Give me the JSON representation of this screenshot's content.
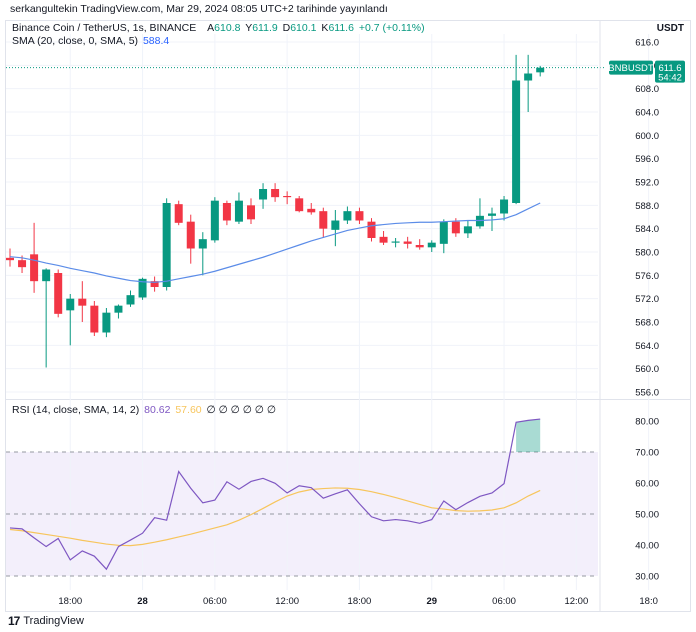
{
  "header": {
    "text": "serkangultekin TradingView.com, Mar 29, 2024 08:05 UTC+2 tarihinde yayınlandı"
  },
  "currency": "USDT",
  "legend": {
    "symbol": "Binance Coin / TetherUS, 1s, BINANCE",
    "open_label": "A",
    "open": "610.8",
    "high_label": "Y",
    "high": "611.9",
    "low_label": "D",
    "low": "610.1",
    "close_label": "K",
    "close": "611.6",
    "change": "+0.7 (+0.11%)",
    "sma_label": "SMA (20, close, 0, SMA, 5)",
    "sma_value": "588.4",
    "rsi_label": "RSI (14, close, SMA, 14, 2)",
    "rsi_value": "80.62",
    "rsi_sma_value": "57.60",
    "rsi_placeholders": "∅ ∅ ∅ ∅ ∅ ∅"
  },
  "price_badge": {
    "symbol": "BNBUSDT",
    "price": "611.6",
    "countdown": "54:42"
  },
  "colors": {
    "up": "#089981",
    "down": "#f23645",
    "sma": "#5b8ce8",
    "rsi": "#7e57c2",
    "rsi_sma": "#f7c55c",
    "rsi_band": "#f3effb",
    "grid": "#f0f3fa"
  },
  "footer": {
    "brand": "TradingView"
  },
  "chart_data": [
    {
      "type": "candlestick",
      "title": "Binance Coin / TetherUS, 1s, BINANCE",
      "y_ticks": [
        556,
        560,
        564,
        568,
        572,
        576,
        580,
        584,
        588,
        592,
        596,
        600,
        604,
        608,
        612,
        616
      ],
      "ylim": [
        555,
        617
      ],
      "x_ticks": [
        {
          "label": "18:00",
          "bold": false,
          "index": 5
        },
        {
          "label": "28",
          "bold": true,
          "index": 11
        },
        {
          "label": "06:00",
          "bold": false,
          "index": 17
        },
        {
          "label": "12:00",
          "bold": false,
          "index": 23
        },
        {
          "label": "18:00",
          "bold": false,
          "index": 29
        },
        {
          "label": "29",
          "bold": true,
          "index": 35
        },
        {
          "label": "06:00",
          "bold": false,
          "index": 41
        },
        {
          "label": "12:00",
          "bold": false,
          "index": 47
        },
        {
          "label": "18:0",
          "bold": false,
          "index": 53
        }
      ],
      "candles": [
        {
          "o": 579.0,
          "h": 580.6,
          "l": 577.5,
          "c": 578.6
        },
        {
          "o": 578.6,
          "h": 579.4,
          "l": 576.4,
          "c": 577.4
        },
        {
          "o": 579.6,
          "h": 585.0,
          "l": 573.0,
          "c": 575.0
        },
        {
          "o": 575.0,
          "h": 577.2,
          "l": 560.2,
          "c": 577.0
        },
        {
          "o": 576.4,
          "h": 577.0,
          "l": 568.8,
          "c": 569.4
        },
        {
          "o": 570.0,
          "h": 572.8,
          "l": 564.0,
          "c": 572.0
        },
        {
          "o": 572.0,
          "h": 575.0,
          "l": 568.0,
          "c": 570.8
        },
        {
          "o": 570.8,
          "h": 571.6,
          "l": 565.6,
          "c": 566.2
        },
        {
          "o": 566.2,
          "h": 570.4,
          "l": 565.4,
          "c": 569.6
        },
        {
          "o": 569.6,
          "h": 571.0,
          "l": 568.6,
          "c": 570.8
        },
        {
          "o": 571.0,
          "h": 573.4,
          "l": 570.6,
          "c": 572.6
        },
        {
          "o": 572.2,
          "h": 575.6,
          "l": 571.8,
          "c": 575.4
        },
        {
          "o": 575.0,
          "h": 575.8,
          "l": 573.2,
          "c": 574.0
        },
        {
          "o": 574.0,
          "h": 589.2,
          "l": 573.4,
          "c": 588.4
        },
        {
          "o": 588.2,
          "h": 588.8,
          "l": 584.6,
          "c": 585.0
        },
        {
          "o": 585.2,
          "h": 586.4,
          "l": 578.0,
          "c": 580.6
        },
        {
          "o": 580.6,
          "h": 583.4,
          "l": 576.0,
          "c": 582.2
        },
        {
          "o": 582.0,
          "h": 589.4,
          "l": 581.6,
          "c": 588.8
        },
        {
          "o": 588.4,
          "h": 588.8,
          "l": 584.6,
          "c": 585.4
        },
        {
          "o": 585.2,
          "h": 590.2,
          "l": 584.8,
          "c": 588.8
        },
        {
          "o": 588.0,
          "h": 589.2,
          "l": 584.8,
          "c": 585.6
        },
        {
          "o": 589.0,
          "h": 591.8,
          "l": 587.4,
          "c": 590.8
        },
        {
          "o": 590.8,
          "h": 591.8,
          "l": 588.6,
          "c": 589.4
        },
        {
          "o": 589.6,
          "h": 590.4,
          "l": 588.2,
          "c": 589.4
        },
        {
          "o": 589.2,
          "h": 589.6,
          "l": 586.8,
          "c": 587.0
        },
        {
          "o": 587.4,
          "h": 588.4,
          "l": 586.4,
          "c": 586.8
        },
        {
          "o": 587.0,
          "h": 587.6,
          "l": 582.4,
          "c": 584.0
        },
        {
          "o": 583.8,
          "h": 587.2,
          "l": 581.0,
          "c": 585.4
        },
        {
          "o": 585.4,
          "h": 587.8,
          "l": 584.8,
          "c": 587.0
        },
        {
          "o": 587.0,
          "h": 587.6,
          "l": 584.8,
          "c": 585.4
        },
        {
          "o": 585.2,
          "h": 585.8,
          "l": 581.8,
          "c": 582.4
        },
        {
          "o": 582.6,
          "h": 583.6,
          "l": 581.2,
          "c": 581.6
        },
        {
          "o": 581.6,
          "h": 582.4,
          "l": 580.8,
          "c": 581.8
        },
        {
          "o": 581.8,
          "h": 582.6,
          "l": 580.6,
          "c": 581.4
        },
        {
          "o": 581.2,
          "h": 582.2,
          "l": 580.4,
          "c": 580.8
        },
        {
          "o": 580.8,
          "h": 582.0,
          "l": 580.0,
          "c": 581.6
        },
        {
          "o": 581.4,
          "h": 585.6,
          "l": 579.8,
          "c": 585.2
        },
        {
          "o": 585.2,
          "h": 585.8,
          "l": 582.6,
          "c": 583.2
        },
        {
          "o": 583.2,
          "h": 585.4,
          "l": 582.4,
          "c": 584.4
        },
        {
          "o": 584.4,
          "h": 589.2,
          "l": 584.0,
          "c": 586.2
        },
        {
          "o": 586.2,
          "h": 587.6,
          "l": 583.6,
          "c": 586.6
        },
        {
          "o": 586.6,
          "h": 589.6,
          "l": 585.4,
          "c": 589.0
        },
        {
          "o": 588.4,
          "h": 613.8,
          "l": 588.2,
          "c": 609.4
        },
        {
          "o": 609.4,
          "h": 613.8,
          "l": 604.0,
          "c": 610.6
        },
        {
          "o": 610.8,
          "h": 611.9,
          "l": 610.1,
          "c": 611.6
        }
      ],
      "sma": [
        579.2,
        579.0,
        578.6,
        578.1,
        577.7,
        577.2,
        576.8,
        576.4,
        575.9,
        575.5,
        575.1,
        574.9,
        574.8,
        575.0,
        575.4,
        575.8,
        576.2,
        576.7,
        577.3,
        577.9,
        578.5,
        579.1,
        579.8,
        580.5,
        581.2,
        581.9,
        582.5,
        583.1,
        583.7,
        584.1,
        584.5,
        584.7,
        584.9,
        585.0,
        585.1,
        585.1,
        585.2,
        585.3,
        585.4,
        585.4,
        585.5,
        585.7,
        586.4,
        587.4,
        588.4
      ]
    },
    {
      "type": "line",
      "title": "RSI (14, close, SMA, 14, 2)",
      "y_ticks": [
        30,
        40,
        50,
        60,
        70,
        80
      ],
      "ylim": [
        29,
        84
      ],
      "band": [
        30,
        70
      ],
      "rsi": [
        45.5,
        45.2,
        42.3,
        39.5,
        42.1,
        35.2,
        38.1,
        36.4,
        32.2,
        39.5,
        41.6,
        43.8,
        48.8,
        48.0,
        63.7,
        58.3,
        53.6,
        54.5,
        60.4,
        58.0,
        60.5,
        61.5,
        59.9,
        56.8,
        59.1,
        58.5,
        55.1,
        56.5,
        57.8,
        53.3,
        49.1,
        47.8,
        48.2,
        47.8,
        47.0,
        48.2,
        54.2,
        51.4,
        53.7,
        55.7,
        56.8,
        59.8,
        79.6,
        80.2,
        80.62
      ],
      "rsi_sma": [
        45.0,
        44.6,
        44.0,
        43.4,
        42.8,
        42.2,
        41.5,
        40.9,
        40.3,
        39.9,
        39.8,
        40.2,
        40.9,
        41.7,
        42.6,
        43.5,
        44.5,
        45.5,
        46.5,
        48.0,
        49.8,
        51.8,
        53.9,
        55.8,
        57.1,
        57.9,
        58.2,
        58.4,
        58.3,
        57.9,
        57.2,
        56.3,
        55.3,
        54.2,
        53.1,
        52.0,
        51.6,
        51.1,
        50.9,
        51.0,
        51.3,
        52.0,
        53.6,
        55.8,
        57.6
      ]
    }
  ]
}
